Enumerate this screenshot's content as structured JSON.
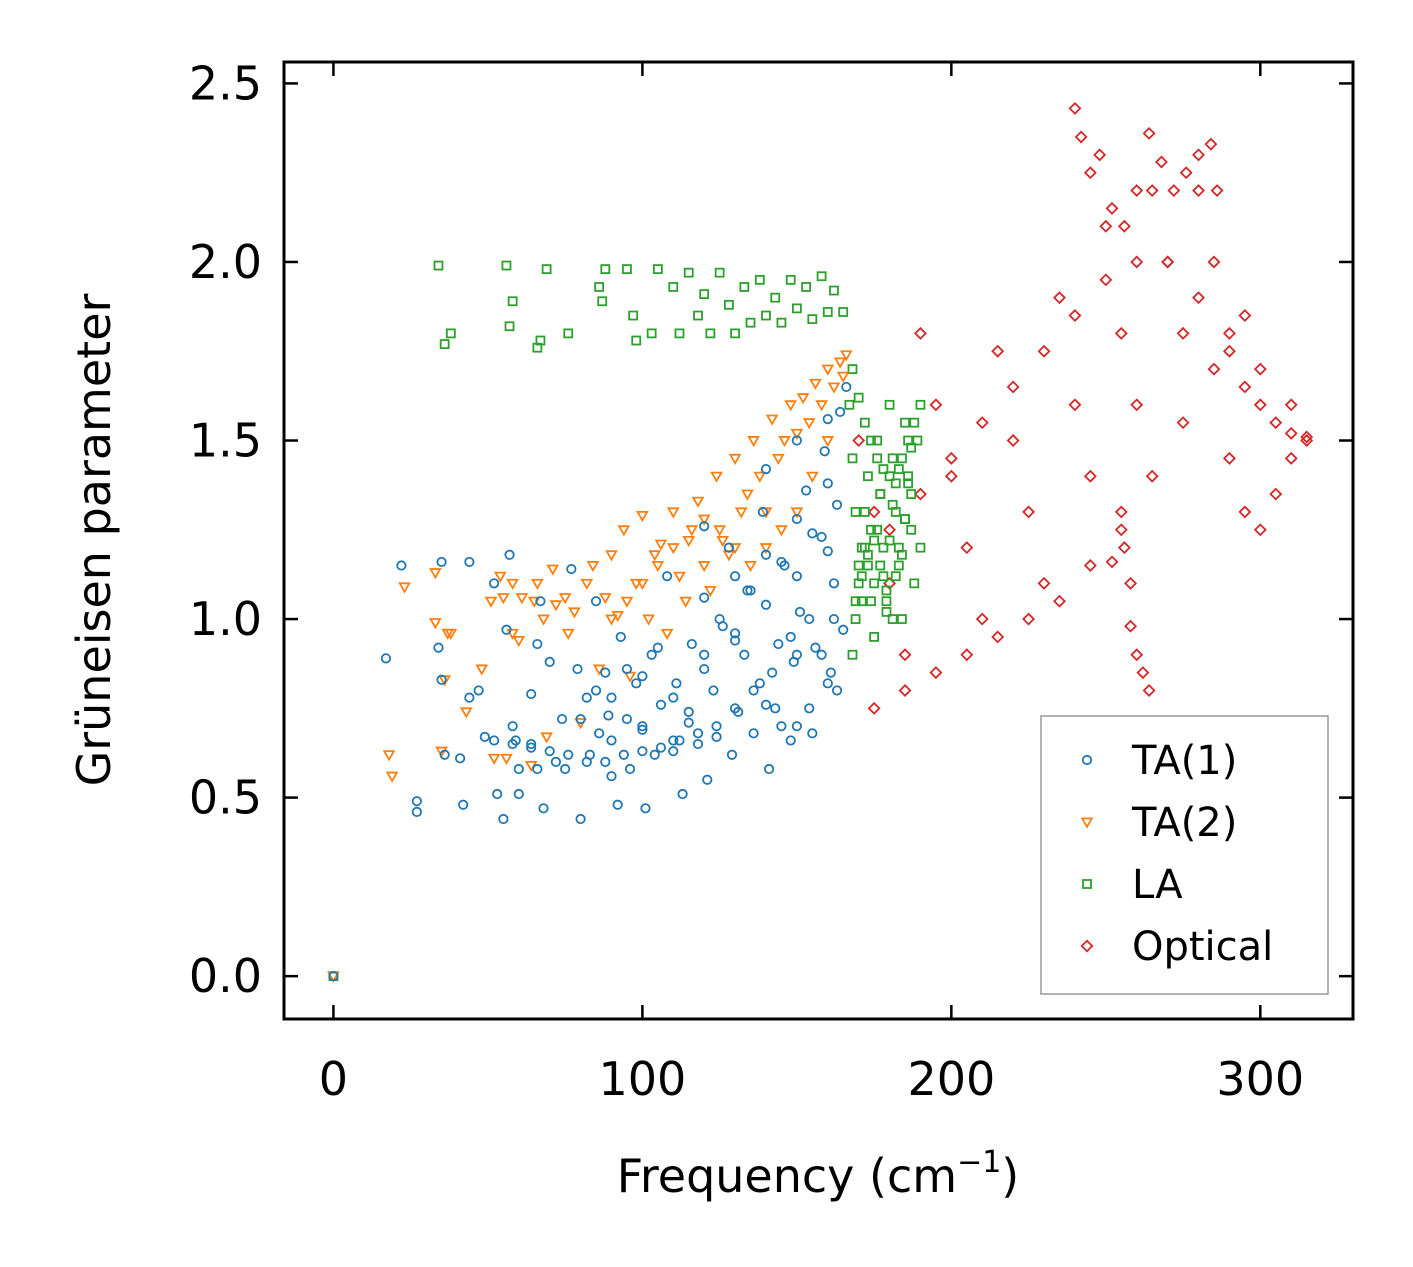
{
  "chart_data": {
    "type": "scatter",
    "xlabel": "Frequency (cm",
    "xlabel_sup": "−1",
    "xlabel_close": ")",
    "ylabel": "Grüneisen parameter",
    "xlim": [
      -16,
      330
    ],
    "ylim": [
      -0.12,
      2.56
    ],
    "xticks": [
      0,
      100,
      200,
      300
    ],
    "xtick_labels": [
      "0",
      "100",
      "200",
      "300"
    ],
    "yticks": [
      0.0,
      0.5,
      1.0,
      1.5,
      2.0,
      2.5
    ],
    "ytick_labels": [
      "0.0",
      "0.5",
      "1.0",
      "1.5",
      "2.0",
      "2.5"
    ],
    "legend_position": "lower-right",
    "series": [
      {
        "name": "TA(1)",
        "marker": "circle",
        "color": "#1f77b4",
        "x": [
          0,
          17,
          22,
          27,
          27,
          34,
          35,
          35,
          36,
          41,
          42,
          44,
          44,
          47,
          49,
          52,
          53,
          55,
          56,
          57,
          58,
          59,
          60,
          60,
          64,
          64,
          66,
          66,
          67,
          68,
          70,
          72,
          74,
          75,
          77,
          79,
          80,
          82,
          83,
          85,
          86,
          88,
          89,
          90,
          92,
          93,
          95,
          96,
          98,
          100,
          101,
          103,
          104,
          106,
          108,
          110,
          111,
          113,
          115,
          116,
          118,
          120,
          121,
          123,
          124,
          126,
          128,
          129,
          131,
          133,
          134,
          136,
          138,
          139,
          141,
          143,
          144,
          146,
          148,
          149,
          151,
          153,
          154,
          156,
          158,
          159,
          161,
          162,
          163,
          164,
          165,
          166,
          80,
          90,
          100,
          110,
          120,
          130,
          140,
          150,
          160,
          85,
          95,
          105,
          115,
          125,
          135,
          145,
          155,
          90,
          100,
          110,
          120,
          130,
          140,
          150,
          160,
          120,
          130,
          140,
          150,
          160,
          140,
          150,
          160,
          145,
          155,
          163,
          158,
          162,
          150,
          154,
          148,
          142,
          136,
          130,
          124,
          118,
          112,
          106,
          100,
          94,
          88,
          82,
          76,
          70,
          64,
          58,
          52
        ],
        "y": [
          0.0,
          0.89,
          1.15,
          0.49,
          0.46,
          0.92,
          0.83,
          1.16,
          0.62,
          0.61,
          0.48,
          1.16,
          0.78,
          0.8,
          0.67,
          1.1,
          0.51,
          0.44,
          0.97,
          1.18,
          0.7,
          0.66,
          0.58,
          0.51,
          0.79,
          0.65,
          0.58,
          0.93,
          1.05,
          0.47,
          0.88,
          0.6,
          0.72,
          0.58,
          1.14,
          0.86,
          0.44,
          0.78,
          0.62,
          1.05,
          0.68,
          0.85,
          0.73,
          0.56,
          0.48,
          0.95,
          0.72,
          0.58,
          0.82,
          0.69,
          0.47,
          0.9,
          0.62,
          0.76,
          1.12,
          0.63,
          0.82,
          0.51,
          0.71,
          0.93,
          0.65,
          1.26,
          0.55,
          0.8,
          0.67,
          0.98,
          1.2,
          0.62,
          0.74,
          0.9,
          1.08,
          0.68,
          0.82,
          1.3,
          0.58,
          0.75,
          0.93,
          1.15,
          0.66,
          0.88,
          1.02,
          1.36,
          0.75,
          0.92,
          1.23,
          1.47,
          0.85,
          1.1,
          1.32,
          1.58,
          0.97,
          1.65,
          0.72,
          0.78,
          0.84,
          0.66,
          0.9,
          0.96,
          1.04,
          1.12,
          1.19,
          0.8,
          0.86,
          0.92,
          0.74,
          1.0,
          1.08,
          1.16,
          1.24,
          0.66,
          0.7,
          0.78,
          0.86,
          0.94,
          0.76,
          0.7,
          0.82,
          1.06,
          1.12,
          1.18,
          1.28,
          1.38,
          1.42,
          1.5,
          1.56,
          0.7,
          0.68,
          0.8,
          0.9,
          1.0,
          0.9,
          1.0,
          0.95,
          0.85,
          0.8,
          0.75,
          0.7,
          0.68,
          0.66,
          0.64,
          0.63,
          0.62,
          0.6,
          0.6,
          0.62,
          0.63,
          0.64,
          0.65,
          0.66
        ]
      },
      {
        "name": "TA(2)",
        "marker": "triangle-down",
        "color": "#ff7f0e",
        "x": [
          0,
          18,
          19,
          23,
          33,
          33,
          35,
          36,
          37,
          38,
          43,
          48,
          51,
          52,
          54,
          55,
          56,
          58,
          58,
          60,
          61,
          64,
          65,
          66,
          68,
          69,
          71,
          72,
          75,
          76,
          78,
          80,
          82,
          84,
          86,
          88,
          90,
          92,
          94,
          96,
          98,
          100,
          102,
          104,
          106,
          108,
          110,
          112,
          114,
          116,
          118,
          120,
          122,
          124,
          126,
          128,
          130,
          132,
          134,
          136,
          138,
          140,
          142,
          144,
          146,
          148,
          150,
          152,
          154,
          156,
          158,
          160,
          162,
          164,
          165,
          166,
          150,
          155,
          160,
          140,
          145,
          135,
          130,
          125,
          120,
          115,
          110,
          105,
          100,
          95,
          90
        ],
        "y": [
          0.0,
          0.62,
          0.56,
          1.09,
          1.13,
          0.99,
          0.63,
          0.83,
          0.96,
          0.96,
          0.74,
          0.86,
          1.05,
          0.61,
          1.12,
          1.06,
          0.61,
          0.96,
          1.1,
          0.94,
          1.06,
          0.59,
          1.05,
          1.1,
          1.0,
          0.67,
          1.14,
          1.04,
          1.06,
          0.96,
          1.02,
          0.71,
          1.1,
          1.15,
          0.86,
          1.06,
          1.18,
          1.01,
          1.25,
          0.84,
          1.1,
          1.29,
          1.0,
          1.18,
          1.21,
          0.96,
          1.3,
          1.12,
          1.05,
          1.25,
          1.33,
          1.15,
          1.08,
          1.4,
          1.22,
          1.18,
          1.45,
          1.3,
          1.35,
          1.5,
          1.4,
          1.3,
          1.56,
          1.45,
          1.5,
          1.6,
          1.52,
          1.62,
          1.55,
          1.66,
          1.6,
          1.7,
          1.65,
          1.72,
          1.68,
          1.74,
          1.3,
          1.4,
          1.5,
          1.2,
          1.25,
          1.15,
          1.2,
          1.25,
          1.28,
          1.22,
          1.2,
          1.15,
          1.1,
          1.05,
          1.0
        ]
      },
      {
        "name": "LA",
        "marker": "square",
        "color": "#2ca02c",
        "x": [
          0,
          34,
          36,
          38,
          56,
          57,
          58,
          66,
          67,
          69,
          76,
          86,
          87,
          88,
          95,
          97,
          98,
          103,
          105,
          110,
          112,
          115,
          118,
          120,
          122,
          125,
          128,
          130,
          133,
          135,
          138,
          140,
          143,
          145,
          148,
          150,
          153,
          155,
          158,
          160,
          162,
          165,
          167,
          168,
          169,
          170,
          171,
          172,
          173,
          174,
          175,
          176,
          177,
          178,
          179,
          180,
          181,
          182,
          183,
          184,
          185,
          186,
          187,
          188,
          189,
          190,
          168,
          169,
          170,
          171,
          172,
          173,
          174,
          175,
          176,
          177,
          178,
          179,
          180,
          181,
          182,
          183,
          184,
          185,
          186,
          187,
          168,
          170,
          172,
          174,
          176,
          178,
          180,
          182,
          184,
          186,
          188,
          190,
          169,
          171,
          173,
          175,
          177,
          179,
          181,
          183,
          185,
          187
        ],
        "y": [
          0.0,
          1.99,
          1.77,
          1.8,
          1.99,
          1.82,
          1.89,
          1.76,
          1.78,
          1.98,
          1.8,
          1.93,
          1.89,
          1.98,
          1.98,
          1.85,
          1.78,
          1.8,
          1.98,
          1.93,
          1.8,
          1.97,
          1.85,
          1.91,
          1.8,
          1.97,
          1.88,
          1.8,
          1.93,
          1.83,
          1.95,
          1.85,
          1.9,
          1.83,
          1.95,
          1.87,
          1.93,
          1.84,
          1.96,
          1.86,
          1.92,
          1.86,
          1.6,
          1.45,
          1.3,
          1.15,
          1.05,
          1.2,
          1.4,
          1.25,
          1.1,
          1.5,
          1.35,
          1.2,
          1.05,
          1.6,
          1.45,
          1.3,
          1.15,
          1.0,
          1.55,
          1.4,
          1.25,
          1.1,
          1.5,
          1.2,
          0.9,
          1.0,
          1.1,
          1.2,
          1.3,
          1.15,
          1.05,
          0.95,
          1.25,
          1.35,
          1.12,
          1.02,
          1.22,
          1.32,
          1.12,
          1.42,
          1.18,
          1.28,
          1.38,
          1.48,
          1.7,
          1.62,
          1.55,
          1.5,
          1.45,
          1.42,
          1.4,
          1.38,
          1.45,
          1.5,
          1.55,
          1.6,
          1.05,
          1.12,
          1.18,
          1.22,
          1.15,
          1.08,
          1.0,
          1.2,
          1.28,
          1.35
        ]
      },
      {
        "name": "Optical",
        "marker": "diamond",
        "color": "#d62728",
        "x": [
          170,
          175,
          180,
          185,
          190,
          195,
          200,
          205,
          210,
          215,
          220,
          225,
          230,
          235,
          240,
          245,
          250,
          255,
          260,
          265,
          270,
          275,
          280,
          285,
          290,
          295,
          300,
          305,
          310,
          315,
          240,
          242,
          245,
          248,
          252,
          256,
          260,
          264,
          268,
          272,
          276,
          280,
          284,
          286,
          252,
          255,
          258,
          262,
          264,
          260,
          258,
          256,
          290,
          295,
          300,
          305,
          310,
          315,
          310,
          300,
          290,
          280,
          270,
          260,
          250,
          240,
          230,
          220,
          210,
          200,
          190,
          180,
          175,
          185,
          195,
          205,
          215,
          225,
          235,
          245,
          255,
          265,
          275,
          285,
          295
        ],
        "y": [
          1.5,
          1.3,
          1.1,
          0.9,
          1.8,
          1.6,
          1.4,
          1.2,
          1.0,
          1.75,
          1.5,
          1.3,
          1.1,
          1.9,
          1.6,
          1.4,
          2.1,
          1.8,
          1.6,
          2.2,
          2.0,
          1.8,
          2.2,
          2.0,
          1.75,
          1.65,
          1.6,
          1.55,
          1.52,
          1.51,
          2.43,
          2.35,
          2.25,
          2.3,
          2.15,
          2.1,
          2.2,
          2.36,
          2.28,
          2.2,
          2.25,
          2.3,
          2.33,
          2.2,
          1.16,
          1.3,
          0.98,
          0.85,
          0.8,
          0.9,
          1.1,
          1.2,
          1.45,
          1.3,
          1.25,
          1.35,
          1.45,
          1.5,
          1.6,
          1.7,
          1.8,
          1.9,
          2.0,
          2.0,
          1.95,
          1.85,
          1.75,
          1.65,
          1.55,
          1.45,
          1.35,
          1.25,
          0.75,
          0.8,
          0.85,
          0.9,
          0.95,
          1.0,
          1.05,
          1.15,
          1.25,
          1.4,
          1.55,
          1.7,
          1.85
        ]
      }
    ]
  }
}
